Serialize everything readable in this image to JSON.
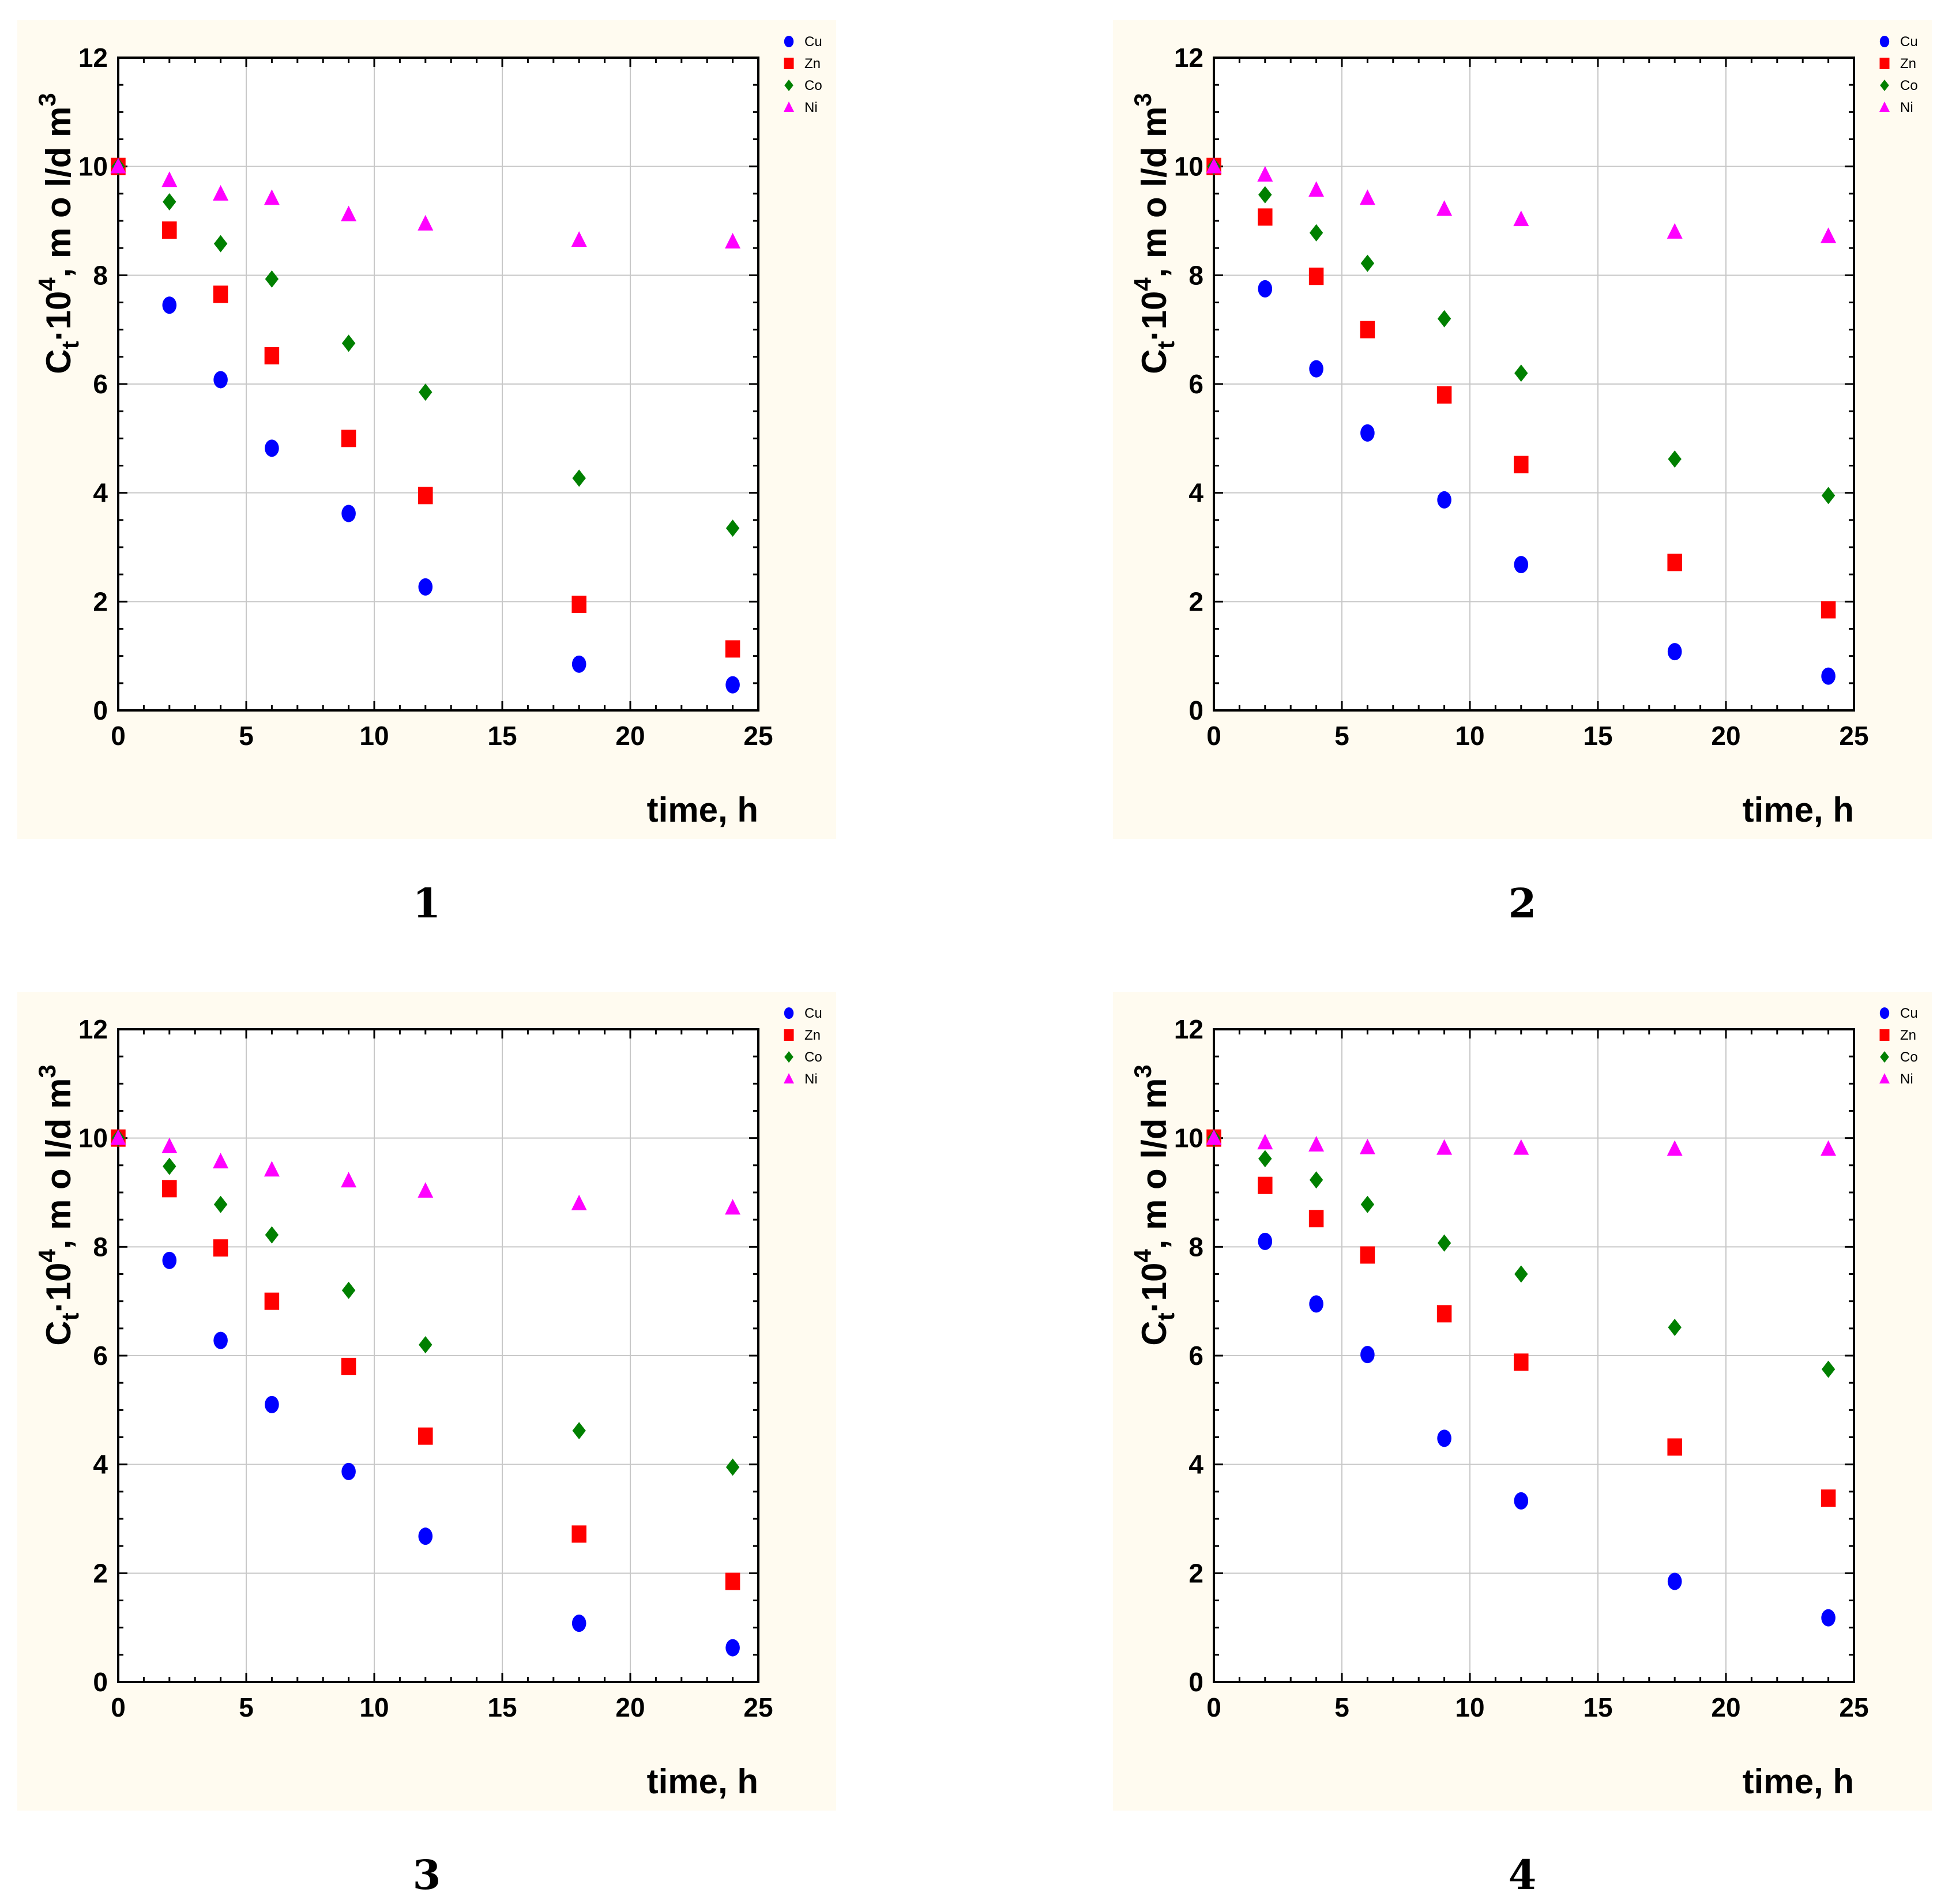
{
  "figure": {
    "legend": [
      {
        "name": "Cu",
        "color": "#0000ff",
        "marker": "circle"
      },
      {
        "name": "Zn",
        "color": "#ff0000",
        "marker": "square"
      },
      {
        "name": "Co",
        "color": "#008000",
        "marker": "diamond"
      },
      {
        "name": "Ni",
        "color": "#ff00ff",
        "marker": "triangle"
      }
    ],
    "ylabel_base": "C",
    "ylabel_sub": "t",
    "ylabel_mid": "·10",
    "ylabel_sup": "4",
    "ylabel_units": ", m o l/d m",
    "ylabel_units_sup": "3",
    "xlabel": "time, h",
    "background_color": "#fffbf0"
  },
  "chart_data": [
    {
      "type": "scatter",
      "caption": "1",
      "x": [
        0,
        2,
        4,
        6,
        9,
        12,
        18,
        24
      ],
      "xlim": [
        0,
        25
      ],
      "ylim": [
        0,
        12
      ],
      "xticks": [
        "0",
        "5",
        "10",
        "15",
        "20",
        "25"
      ],
      "yticks": [
        "0",
        "2",
        "4",
        "6",
        "8",
        "10",
        "12"
      ],
      "series": [
        {
          "name": "Cu",
          "values": [
            10.0,
            7.45,
            6.08,
            4.82,
            3.62,
            2.27,
            0.85,
            0.47
          ]
        },
        {
          "name": "Zn",
          "values": [
            10.0,
            8.83,
            7.65,
            6.52,
            5.0,
            3.95,
            1.95,
            1.13
          ]
        },
        {
          "name": "Co",
          "values": [
            10.0,
            9.35,
            8.58,
            7.93,
            6.75,
            5.85,
            4.27,
            3.35
          ]
        },
        {
          "name": "Ni",
          "values": [
            10.0,
            9.75,
            9.5,
            9.42,
            9.12,
            8.95,
            8.65,
            8.62
          ]
        }
      ]
    },
    {
      "type": "scatter",
      "caption": "2",
      "x": [
        0,
        2,
        4,
        6,
        9,
        12,
        18,
        24
      ],
      "xlim": [
        0,
        25
      ],
      "ylim": [
        0,
        12
      ],
      "xticks": [
        "0",
        "5",
        "10",
        "15",
        "20",
        "25"
      ],
      "yticks": [
        "0",
        "2",
        "4",
        "6",
        "8",
        "10",
        "12"
      ],
      "series": [
        {
          "name": "Cu",
          "values": [
            10.0,
            7.75,
            6.28,
            5.1,
            3.87,
            2.68,
            1.08,
            0.63
          ]
        },
        {
          "name": "Zn",
          "values": [
            10.0,
            9.07,
            7.98,
            7.0,
            5.8,
            4.52,
            2.72,
            1.85
          ]
        },
        {
          "name": "Co",
          "values": [
            10.0,
            9.48,
            8.78,
            8.22,
            7.2,
            6.2,
            4.62,
            3.95
          ]
        },
        {
          "name": "Ni",
          "values": [
            10.0,
            9.85,
            9.57,
            9.42,
            9.22,
            9.03,
            8.8,
            8.72
          ]
        }
      ]
    },
    {
      "type": "scatter",
      "caption": "3",
      "x": [
        0,
        2,
        4,
        6,
        9,
        12,
        18,
        24
      ],
      "xlim": [
        0,
        25
      ],
      "ylim": [
        0,
        12
      ],
      "xticks": [
        "0",
        "5",
        "10",
        "15",
        "20",
        "25"
      ],
      "yticks": [
        "0",
        "2",
        "4",
        "6",
        "8",
        "10",
        "12"
      ],
      "series": [
        {
          "name": "Cu",
          "values": [
            10.0,
            7.75,
            6.28,
            5.1,
            3.87,
            2.68,
            1.08,
            0.63
          ]
        },
        {
          "name": "Zn",
          "values": [
            10.0,
            9.07,
            7.98,
            7.0,
            5.8,
            4.52,
            2.72,
            1.85
          ]
        },
        {
          "name": "Co",
          "values": [
            10.0,
            9.48,
            8.78,
            8.22,
            7.2,
            6.2,
            4.62,
            3.95
          ]
        },
        {
          "name": "Ni",
          "values": [
            10.0,
            9.85,
            9.57,
            9.42,
            9.22,
            9.03,
            8.8,
            8.72
          ]
        }
      ]
    },
    {
      "type": "scatter",
      "caption": "4",
      "x": [
        0,
        2,
        4,
        6,
        9,
        12,
        18,
        24
      ],
      "xlim": [
        0,
        25
      ],
      "ylim": [
        0,
        12
      ],
      "xticks": [
        "0",
        "5",
        "10",
        "15",
        "20",
        "25"
      ],
      "yticks": [
        "0",
        "2",
        "4",
        "6",
        "8",
        "10",
        "12"
      ],
      "series": [
        {
          "name": "Cu",
          "values": [
            10.0,
            8.1,
            6.95,
            6.02,
            4.48,
            3.33,
            1.85,
            1.18
          ]
        },
        {
          "name": "Zn",
          "values": [
            10.0,
            9.13,
            8.52,
            7.85,
            6.77,
            5.88,
            4.32,
            3.38
          ]
        },
        {
          "name": "Co",
          "values": [
            10.0,
            9.62,
            9.23,
            8.78,
            8.07,
            7.5,
            6.52,
            5.75
          ]
        },
        {
          "name": "Ni",
          "values": [
            10.0,
            9.92,
            9.88,
            9.83,
            9.82,
            9.82,
            9.8,
            9.8
          ]
        }
      ]
    }
  ]
}
